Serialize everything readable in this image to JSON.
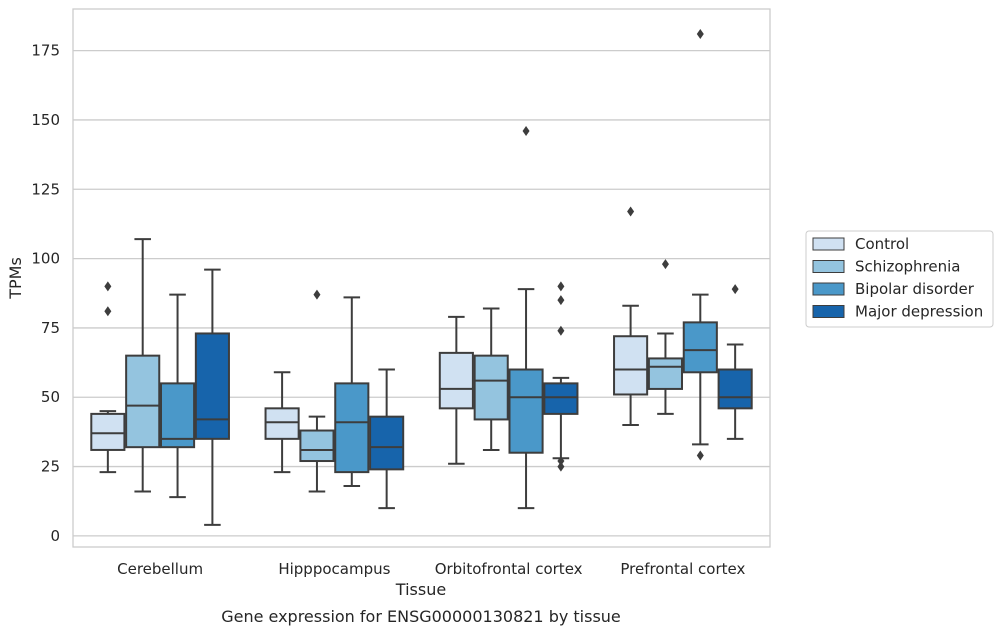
{
  "chart_data": {
    "type": "box",
    "xlabel": "Tissue",
    "ylabel": "TPMs",
    "caption": "Gene expression for ENSG00000130821 by tissue",
    "ylim": [
      -4,
      190
    ],
    "yticks": [
      0,
      25,
      50,
      75,
      100,
      125,
      150,
      175
    ],
    "grid": "horizontal",
    "legend_position": "right",
    "categories": [
      "Cerebellum",
      "Hipppocampus",
      "Orbitofrontal cortex",
      "Prefrontal cortex"
    ],
    "series": [
      {
        "name": "Control",
        "color": "#d0e1f2",
        "boxes": [
          {
            "whislo": 23,
            "q1": 31,
            "med": 37,
            "q3": 44,
            "whishi": 45,
            "fliers": [
              81,
              90
            ]
          },
          {
            "whislo": 23,
            "q1": 35,
            "med": 41,
            "q3": 46,
            "whishi": 59,
            "fliers": []
          },
          {
            "whislo": 26,
            "q1": 46,
            "med": 53,
            "q3": 66,
            "whishi": 79,
            "fliers": []
          },
          {
            "whislo": 40,
            "q1": 51,
            "med": 60,
            "q3": 72,
            "whishi": 83,
            "fliers": [
              117
            ]
          }
        ]
      },
      {
        "name": "Schizophrenia",
        "color": "#94c4df",
        "boxes": [
          {
            "whislo": 16,
            "q1": 32,
            "med": 47,
            "q3": 65,
            "whishi": 107,
            "fliers": []
          },
          {
            "whislo": 16,
            "q1": 27,
            "med": 31,
            "q3": 38,
            "whishi": 43,
            "fliers": [
              87
            ]
          },
          {
            "whislo": 31,
            "q1": 42,
            "med": 56,
            "q3": 65,
            "whishi": 82,
            "fliers": []
          },
          {
            "whislo": 44,
            "q1": 53,
            "med": 61,
            "q3": 64,
            "whishi": 73,
            "fliers": [
              98
            ]
          }
        ]
      },
      {
        "name": "Bipolar disorder",
        "color": "#4a98c9",
        "boxes": [
          {
            "whislo": 14,
            "q1": 32,
            "med": 35,
            "q3": 55,
            "whishi": 87,
            "fliers": []
          },
          {
            "whislo": 18,
            "q1": 23,
            "med": 41,
            "q3": 55,
            "whishi": 86,
            "fliers": []
          },
          {
            "whislo": 10,
            "q1": 30,
            "med": 50,
            "q3": 60,
            "whishi": 89,
            "fliers": [
              146
            ]
          },
          {
            "whislo": 33,
            "q1": 59,
            "med": 67,
            "q3": 77,
            "whishi": 87,
            "fliers": [
              29,
              181
            ]
          }
        ]
      },
      {
        "name": "Major depression",
        "color": "#1764ab",
        "boxes": [
          {
            "whislo": 4,
            "q1": 35,
            "med": 42,
            "q3": 73,
            "whishi": 96,
            "fliers": []
          },
          {
            "whislo": 10,
            "q1": 24,
            "med": 32,
            "q3": 43,
            "whishi": 60,
            "fliers": []
          },
          {
            "whislo": 28,
            "q1": 44,
            "med": 50,
            "q3": 55,
            "whishi": 57,
            "fliers": [
              25,
              27,
              74,
              85,
              90
            ]
          },
          {
            "whislo": 35,
            "q1": 46,
            "med": 50,
            "q3": 60,
            "whishi": 69,
            "fliers": [
              89
            ]
          }
        ]
      }
    ]
  }
}
